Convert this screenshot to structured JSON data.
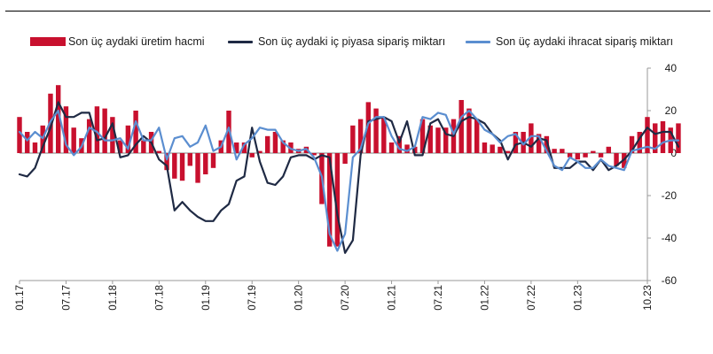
{
  "colors": {
    "production": "#C8102E",
    "domestic": "#1F2A44",
    "export": "#5B8ED0",
    "axis": "#9a9a9a"
  },
  "legend": {
    "production": "Son üç aydaki üretim hacmi",
    "domestic": "Son üç aydaki iç piyasa sipariş miktarı",
    "export": "Son üç aydaki ihracat sipariş miktarı"
  },
  "chart_data": {
    "type": "bar+line",
    "title": "",
    "xlabel": "",
    "ylabel": "",
    "ylim": [
      -60,
      40
    ],
    "yticks": [
      40,
      20,
      0,
      -20,
      -40,
      -60
    ],
    "grid": false,
    "legend_position": "top",
    "x_start": "2017-01",
    "x_end": "2023-10",
    "x_tick_labels": [
      "01.17",
      "07.17",
      "01.18",
      "07.18",
      "01.19",
      "07.19",
      "01.20",
      "07.20",
      "01.21",
      "07.21",
      "01.22",
      "07.22",
      "01.23",
      "10.23"
    ],
    "series": [
      {
        "name": "Son üç aydaki üretim hacmi",
        "kind": "bar",
        "values": [
          17,
          10,
          5,
          13,
          28,
          32,
          22,
          12,
          7,
          16,
          22,
          21,
          17,
          6,
          13,
          20,
          6,
          10,
          1,
          -8,
          -12,
          -13,
          -6,
          -14,
          -10,
          -7,
          6,
          20,
          5,
          5,
          -2,
          1,
          8,
          10,
          6,
          5,
          2,
          3,
          -1,
          -24,
          -44,
          -44,
          -5,
          13,
          16,
          24,
          21,
          17,
          5,
          8,
          4,
          3,
          16,
          13,
          12,
          12,
          16,
          25,
          21,
          16,
          5,
          4,
          3,
          1,
          10,
          10,
          14,
          9,
          8,
          2,
          2,
          -2,
          -3,
          -2,
          1,
          -2,
          3,
          -6,
          -7,
          8,
          10,
          17,
          14,
          15,
          12,
          14
        ]
      },
      {
        "name": "Son üç aydaki iç piyasa sipariş miktarı",
        "kind": "line",
        "values": [
          -10,
          -11,
          -7,
          3,
          12,
          24,
          17,
          17,
          19,
          19,
          6,
          7,
          14,
          -2,
          -1,
          4,
          8,
          5,
          -3,
          -6,
          -27,
          -23,
          -27,
          -30,
          -32,
          -32,
          -27,
          -24,
          -13,
          -11,
          12,
          -4,
          -14,
          -15,
          -11,
          -2,
          -1,
          -1,
          -3,
          -1,
          -2,
          -29,
          -47,
          -41,
          -1,
          15,
          16,
          17,
          15,
          5,
          15,
          -1,
          -1,
          14,
          16,
          9,
          8,
          15,
          17,
          16,
          14,
          9,
          6,
          -3,
          4,
          5,
          3,
          7,
          6,
          -7,
          -7,
          -7,
          -4,
          -4,
          -8,
          -3,
          -8,
          -6,
          -3,
          1,
          7,
          12,
          9,
          10,
          10,
          3
        ]
      },
      {
        "name": "Son üç aydaki ihracat sipariş miktarı",
        "kind": "line",
        "values": [
          10,
          6,
          10,
          7,
          15,
          20,
          4,
          -1,
          3,
          12,
          10,
          6,
          6,
          7,
          2,
          15,
          6,
          6,
          12,
          -3,
          7,
          8,
          3,
          5,
          13,
          1,
          3,
          12,
          -3,
          4,
          7,
          12,
          11,
          11,
          5,
          2,
          1,
          2,
          -2,
          -11,
          -38,
          -46,
          -38,
          -2,
          2,
          14,
          17,
          17,
          8,
          2,
          1,
          3,
          17,
          16,
          19,
          18,
          9,
          17,
          20,
          16,
          11,
          9,
          5,
          8,
          9,
          4,
          8,
          8,
          1,
          -6,
          -8,
          -2,
          -4,
          -7,
          -7,
          -3,
          -6,
          -7,
          -8,
          1,
          2,
          3,
          2,
          5,
          6,
          6
        ]
      }
    ]
  }
}
